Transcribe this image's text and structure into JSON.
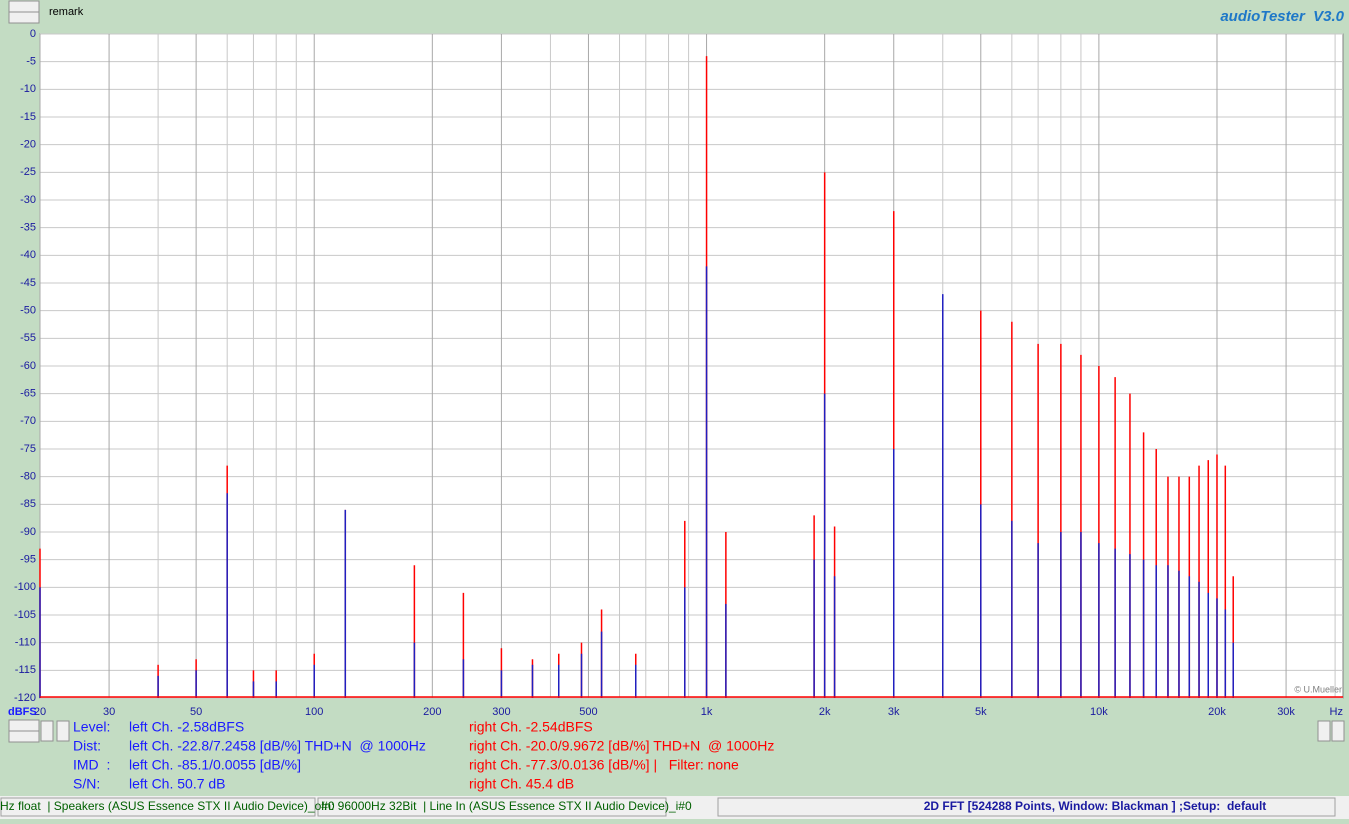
{
  "header": {
    "remark": "remark",
    "app_title": "audioTester  V3.0"
  },
  "chart_data": {
    "type": "spectrum",
    "y_label": "dBFS",
    "x_label": "Hz",
    "credit": "© U.Mueller",
    "x": [
      20,
      40,
      50,
      60,
      70,
      80,
      100,
      120,
      180,
      240,
      300,
      360,
      420,
      480,
      540,
      660,
      880,
      1000,
      1120,
      1880,
      2000,
      2120,
      3000,
      4000,
      5000,
      6000,
      7000,
      8000,
      9000,
      10000,
      11000,
      12000,
      13000,
      14000,
      15000,
      16000,
      17000,
      18000,
      19000,
      20000,
      21000,
      22000
    ],
    "series": [
      {
        "name": "right Ch.",
        "color": "#ff0000",
        "values": [
          -93,
          -114,
          -113,
          -78,
          -115,
          -115,
          -112,
          -86,
          -96,
          -101,
          -111,
          -113,
          -112,
          -110,
          -104,
          -112,
          -88,
          -4,
          -90,
          -87,
          -25,
          -89,
          -32,
          -50,
          -50,
          -52,
          -56,
          -56,
          -58,
          -60,
          -62,
          -65,
          -72,
          -75,
          -80,
          -80,
          -80,
          -78,
          -77,
          -76,
          -78,
          -98
        ]
      },
      {
        "name": "left Ch.",
        "color": "#2020c0",
        "values": [
          -100,
          -116,
          -115,
          -83,
          -117,
          -117,
          -114,
          -86,
          -110,
          -113,
          -115,
          -114,
          -114,
          -112,
          -108,
          -114,
          -100,
          -42,
          -103,
          -95,
          -65,
          -98,
          -75,
          -47,
          -85,
          -88,
          -92,
          -90,
          -90,
          -92,
          -93,
          -94,
          -95,
          -96,
          -96,
          -97,
          -98,
          -99,
          -101,
          -102,
          -104,
          -110
        ]
      }
    ],
    "log_x": true,
    "xlim": [
      20,
      41900
    ],
    "xticks": [
      20,
      30,
      50,
      100,
      200,
      300,
      500,
      {
        "value": 1000,
        "label": "1k"
      },
      {
        "value": 2000,
        "label": "2k"
      },
      {
        "value": 3000,
        "label": "3k"
      },
      {
        "value": 5000,
        "label": "5k"
      },
      {
        "value": 10000,
        "label": "10k"
      },
      {
        "value": 20000,
        "label": "20k"
      },
      {
        "value": 30000,
        "label": "30k"
      }
    ],
    "xgrid": [
      40,
      60,
      70,
      80,
      90,
      400,
      600,
      700,
      800,
      900,
      4000,
      6000,
      7000,
      8000,
      9000,
      40000
    ],
    "ylim": [
      -120,
      0
    ],
    "yticks": [
      0,
      -5,
      -10,
      -15,
      -20,
      -25,
      -30,
      -35,
      -40,
      -45,
      -50,
      -55,
      -60,
      -65,
      -70,
      -75,
      -80,
      -85,
      -90,
      -95,
      -100,
      -105,
      -110,
      -115,
      -120
    ],
    "grid": true
  },
  "measurements": [
    [
      "Level:",
      "left Ch. -2.58dBFS",
      "right Ch. -2.54dBFS"
    ],
    [
      "Dist:",
      "left Ch. -22.8/7.2458 [dB/%] THD+N  @ 1000Hz",
      "right Ch. -20.0/9.9672 [dB/%] THD+N  @ 1000Hz"
    ],
    [
      "IMD  :",
      "left Ch. -85.1/0.0055 [dB/%]",
      "right Ch. -77.3/0.0136 [dB/%] |   Filter: none"
    ],
    [
      "S/N:",
      "left Ch. 50.7 dB",
      "right Ch. 45.4 dB"
    ]
  ],
  "status_bar": [
    "Hz float  | Speakers (ASUS Essence STX II Audio Device)_o#0",
    "In: 96000Hz 32Bit  | Line In (ASUS Essence STX II Audio Device)_i#0",
    "2D FFT [524288 Points, Window: Blackman ] ;Setup:  default"
  ]
}
